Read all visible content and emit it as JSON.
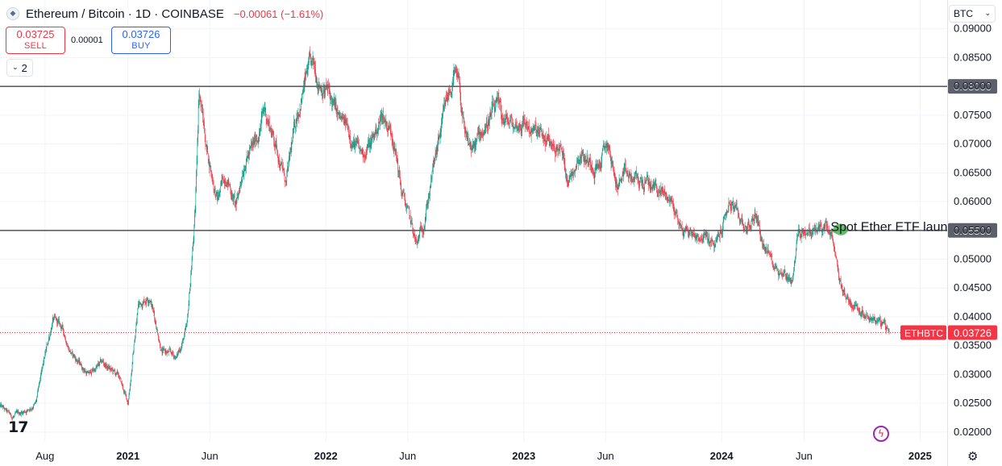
{
  "header": {
    "logo_glyph": "◆",
    "title": "Ethereum / Bitcoin · 1D · COINBASE",
    "change": "−0.00061 (−1.61%)"
  },
  "trade": {
    "sell_price": "0.03725",
    "sell_label": "SELL",
    "spread": "0.00001",
    "buy_price": "0.03726",
    "buy_label": "BUY"
  },
  "indicators": {
    "count": "2",
    "chevron": "⌄"
  },
  "currency": {
    "value": "BTC",
    "chevron": "⌄"
  },
  "brand": {
    "logo": "17"
  },
  "icons": {
    "zap": "ϟ",
    "gear": "⚙"
  },
  "colors": {
    "up": "#089981",
    "down": "#f23645",
    "hline": "#5d606b",
    "price_line": "#f23645",
    "annotation": "#4caf50",
    "grid": "#f0f3fa"
  },
  "chart_data": {
    "type": "candlestick",
    "symbol": "ETHBTC",
    "exchange": "COINBASE",
    "interval": "1D",
    "x_ticks": [
      "Aug",
      "2021",
      "Jun",
      "2022",
      "Jun",
      "2023",
      "Jun",
      "2024",
      "Jun",
      "2025"
    ],
    "x_tick_dates": [
      "2020-08-01",
      "2021-01-01",
      "2021-06-01",
      "2022-01-01",
      "2022-06-01",
      "2023-01-01",
      "2023-06-01",
      "2024-01-01",
      "2024-06-01",
      "2025-01-01"
    ],
    "x_range": [
      "2020-05-10",
      "2025-02-20"
    ],
    "y_ticks": [
      "0.02000",
      "0.02500",
      "0.03000",
      "0.03500",
      "0.04000",
      "0.04500",
      "0.05000",
      "0.05500",
      "0.06000",
      "0.06500",
      "0.07000",
      "0.07500",
      "0.08000",
      "0.08500",
      "0.09000"
    ],
    "y_range": [
      0.0183,
      0.0908
    ],
    "price_path": [
      [
        "2020-05-10",
        0.0245
      ],
      [
        "2020-06-01",
        0.0225
      ],
      [
        "2020-07-01",
        0.024
      ],
      [
        "2020-07-15",
        0.025
      ],
      [
        "2020-08-01",
        0.033
      ],
      [
        "2020-08-15",
        0.0395
      ],
      [
        "2020-09-01",
        0.038
      ],
      [
        "2020-09-20",
        0.0335
      ],
      [
        "2020-10-20",
        0.03
      ],
      [
        "2020-11-15",
        0.032
      ],
      [
        "2020-12-15",
        0.0295
      ],
      [
        "2021-01-01",
        0.025
      ],
      [
        "2021-01-20",
        0.042
      ],
      [
        "2021-02-10",
        0.044
      ],
      [
        "2021-03-05",
        0.034
      ],
      [
        "2021-04-01",
        0.033
      ],
      [
        "2021-04-20",
        0.038
      ],
      [
        "2021-05-05",
        0.058
      ],
      [
        "2021-05-12",
        0.08
      ],
      [
        "2021-05-25",
        0.07
      ],
      [
        "2021-06-15",
        0.06
      ],
      [
        "2021-07-01",
        0.065
      ],
      [
        "2021-07-20",
        0.059
      ],
      [
        "2021-08-05",
        0.068
      ],
      [
        "2021-08-20",
        0.069
      ],
      [
        "2021-09-10",
        0.076
      ],
      [
        "2021-10-01",
        0.07
      ],
      [
        "2021-10-20",
        0.063
      ],
      [
        "2021-11-10",
        0.076
      ],
      [
        "2021-12-01",
        0.083
      ],
      [
        "2021-12-15",
        0.082
      ],
      [
        "2022-01-05",
        0.079
      ],
      [
        "2022-01-25",
        0.074
      ],
      [
        "2022-02-15",
        0.072
      ],
      [
        "2022-03-05",
        0.068
      ],
      [
        "2022-03-25",
        0.07
      ],
      [
        "2022-04-15",
        0.075
      ],
      [
        "2022-05-05",
        0.072
      ],
      [
        "2022-05-20",
        0.062
      ],
      [
        "2022-06-01",
        0.058
      ],
      [
        "2022-06-18",
        0.052
      ],
      [
        "2022-07-01",
        0.057
      ],
      [
        "2022-07-15",
        0.064
      ],
      [
        "2022-08-01",
        0.072
      ],
      [
        "2022-08-15",
        0.078
      ],
      [
        "2022-08-25",
        0.082
      ],
      [
        "2022-09-05",
        0.079
      ],
      [
        "2022-09-15",
        0.07
      ],
      [
        "2022-10-01",
        0.069
      ],
      [
        "2022-10-20",
        0.073
      ],
      [
        "2022-11-10",
        0.076
      ],
      [
        "2022-11-25",
        0.074
      ],
      [
        "2022-12-15",
        0.073
      ],
      [
        "2023-01-01",
        0.074
      ],
      [
        "2023-01-20",
        0.072
      ],
      [
        "2023-02-15",
        0.07
      ],
      [
        "2023-03-10",
        0.069
      ],
      [
        "2023-03-25",
        0.064
      ],
      [
        "2023-04-15",
        0.069
      ],
      [
        "2023-05-01",
        0.067
      ],
      [
        "2023-05-20",
        0.0665
      ],
      [
        "2023-06-05",
        0.07
      ],
      [
        "2023-06-20",
        0.063
      ],
      [
        "2023-07-05",
        0.064
      ],
      [
        "2023-08-01",
        0.0635
      ],
      [
        "2023-09-01",
        0.0625
      ],
      [
        "2023-10-01",
        0.06
      ],
      [
        "2023-10-20",
        0.055
      ],
      [
        "2023-11-10",
        0.0545
      ],
      [
        "2023-12-01",
        0.054
      ],
      [
        "2023-12-20",
        0.052
      ],
      [
        "2024-01-01",
        0.055
      ],
      [
        "2024-01-15",
        0.06
      ],
      [
        "2024-02-01",
        0.057
      ],
      [
        "2024-02-20",
        0.0555
      ],
      [
        "2024-03-05",
        0.058
      ],
      [
        "2024-03-15",
        0.0535
      ],
      [
        "2024-04-01",
        0.05
      ],
      [
        "2024-04-20",
        0.048
      ],
      [
        "2024-05-10",
        0.0465
      ],
      [
        "2024-05-20",
        0.054
      ],
      [
        "2024-06-01",
        0.0555
      ],
      [
        "2024-06-15",
        0.0545
      ],
      [
        "2024-07-05",
        0.0555
      ],
      [
        "2024-07-20",
        0.054
      ],
      [
        "2024-08-05",
        0.046
      ],
      [
        "2024-08-20",
        0.043
      ],
      [
        "2024-09-05",
        0.042
      ],
      [
        "2024-09-20",
        0.041
      ],
      [
        "2024-10-05",
        0.04
      ],
      [
        "2024-10-20",
        0.039
      ],
      [
        "2024-11-05",
        0.0372
      ]
    ],
    "horizontal_lines": [
      {
        "price": 0.08,
        "label": "0.08000"
      },
      {
        "price": 0.055,
        "label": "0.05500"
      }
    ],
    "last_price": {
      "symbol_label": "ETHBTC",
      "value": 0.03726,
      "label": "0.03726"
    },
    "annotation": {
      "date": "2024-07-23",
      "text": "Spot Ether ETF laun"
    },
    "grid": true,
    "scale": "linear"
  }
}
